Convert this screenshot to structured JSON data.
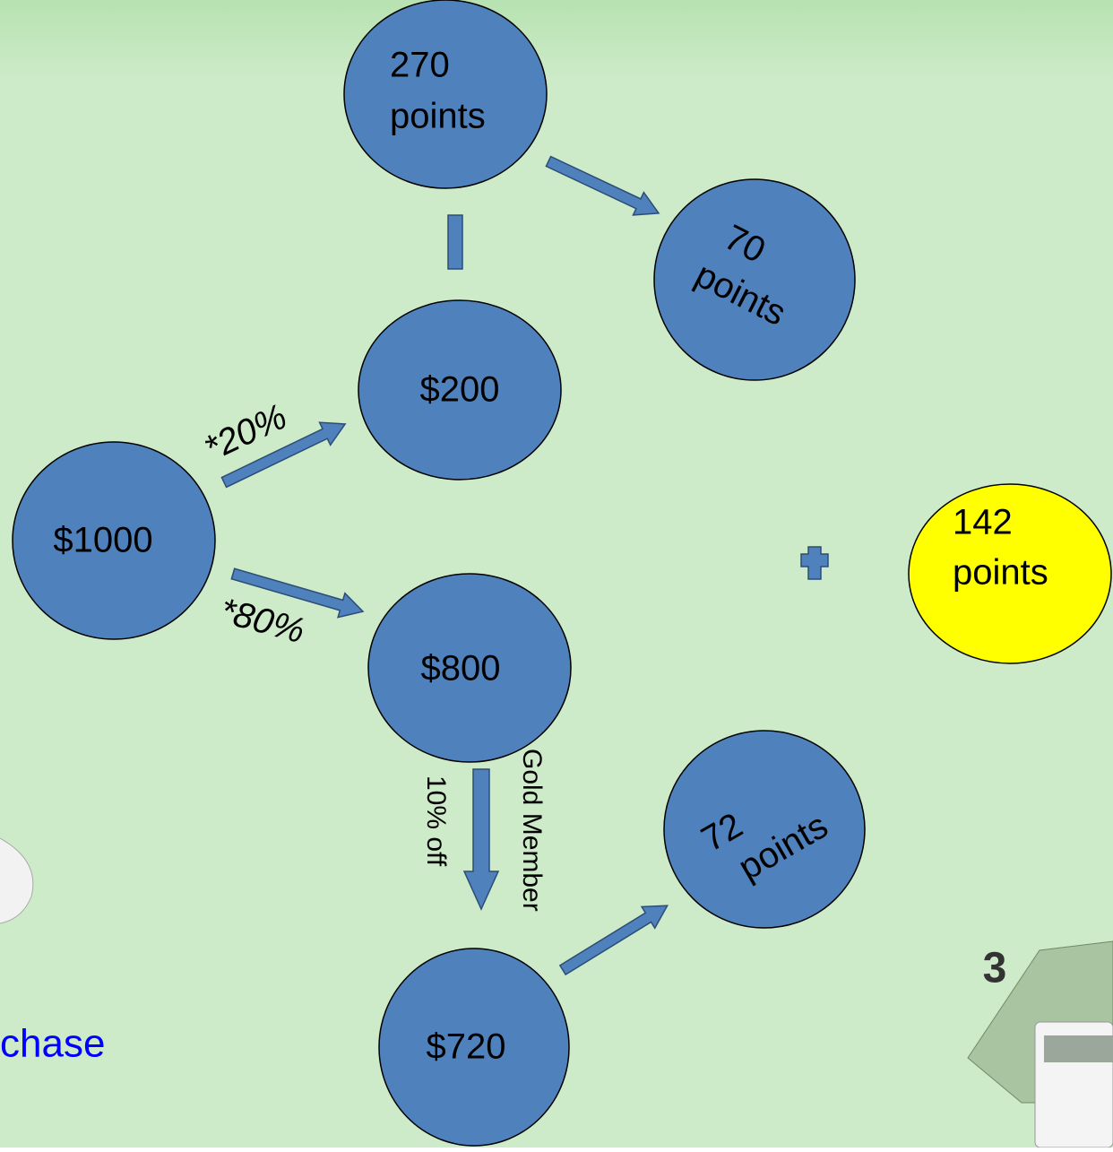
{
  "nodes": [
    {
      "lines": [
        "270",
        "points"
      ]
    },
    {
      "lines": [
        "70",
        "points"
      ]
    },
    {
      "lines": [
        "$200"
      ]
    },
    {
      "lines": [
        "$1000"
      ]
    },
    {
      "lines": [
        "$800"
      ]
    },
    {
      "lines": [
        "$720"
      ]
    },
    {
      "lines": [
        "72",
        "points"
      ]
    },
    {
      "lines": [
        "142",
        "points"
      ]
    }
  ],
  "edge_labels": [
    "*20%",
    "*80%",
    "10% off",
    "Gold Member"
  ],
  "footer_text": "chase",
  "badge": "3"
}
